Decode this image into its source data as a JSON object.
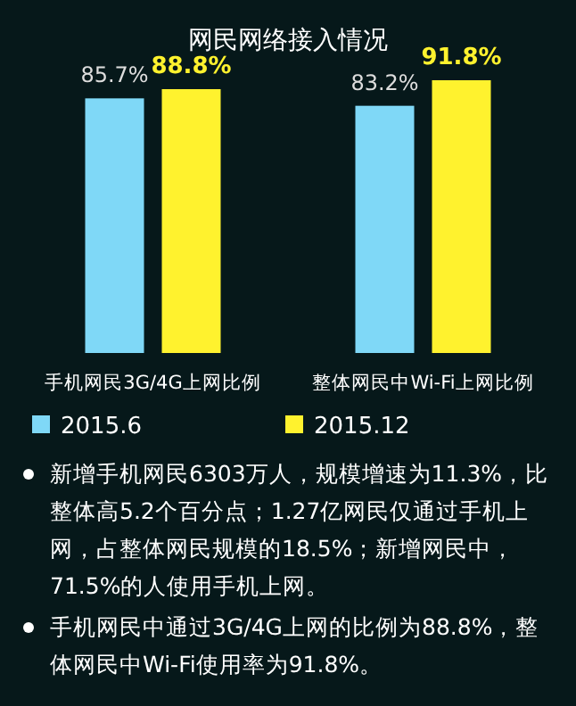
{
  "chart_data": {
    "type": "bar",
    "title": "网民网络接入情况",
    "categories": [
      "手机网民3G/4G上网比例",
      "整体网民中Wi-Fi上网比例"
    ],
    "series": [
      {
        "name": "2015.6",
        "color": "#7fd8f7",
        "values": [
          85.7,
          83.2
        ],
        "value_labels": [
          "85.7%",
          "83.2%"
        ]
      },
      {
        "name": "2015.12",
        "color": "#fff22e",
        "values": [
          88.8,
          91.8
        ],
        "value_labels": [
          "88.8%",
          "91.8%"
        ]
      }
    ],
    "legend": "bottom left",
    "annotations": [
      "新增手机网民6303万人，规模增速为11.3%，比整体高5.2个百分点；1.27亿网民仅通过手机上网，占整体网民规模的18.5%；新增网民中，71.5%的人使用手机上网。",
      "手机网民中通过3G/4G上网的比例为88.8%，整体网民中Wi-Fi使用率为91.8%。"
    ]
  }
}
